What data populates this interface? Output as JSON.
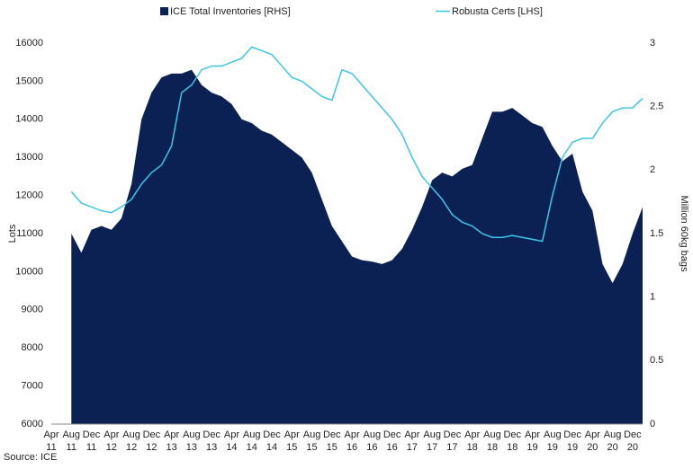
{
  "chart_data": {
    "type": "area-line",
    "source": "Source: ICE",
    "ylabel": "Lots",
    "y2label": "Million 60kg bags",
    "legend": "top",
    "categories": [
      "Apr 11",
      null,
      "Aug 11",
      null,
      "Dec 11",
      null,
      "Apr 12",
      null,
      "Aug 12",
      null,
      "Dec 12",
      null,
      "Apr 13",
      null,
      "Aug 13",
      null,
      "Dec 13",
      null,
      "Apr 14",
      null,
      "Aug 14",
      null,
      "Dec 14",
      null,
      "Apr 15",
      null,
      "Aug 15",
      null,
      "Dec 15",
      null,
      "Apr 16",
      null,
      "Aug 16",
      null,
      "Dec 16",
      null,
      "Apr 17",
      null,
      "Aug 17",
      null,
      "Dec 17",
      null,
      "Apr 18",
      null,
      "Aug 18",
      null,
      "Dec 18",
      null,
      "Apr 19",
      null,
      "Aug 19",
      null,
      "Dec 19",
      null,
      "Apr 20",
      null,
      "Aug 20",
      null,
      "Dec 20",
      null
    ],
    "series": [
      {
        "name": "ICE Total Inventories [RHS]",
        "color": "#0c2153",
        "axis": "y2",
        "kind": "area",
        "values": [
          null,
          null,
          1.5,
          1.35,
          1.53,
          1.56,
          1.53,
          1.62,
          1.89,
          2.4,
          2.61,
          2.73,
          2.76,
          2.76,
          2.79,
          2.67,
          2.61,
          2.58,
          2.52,
          2.4,
          2.37,
          2.31,
          2.28,
          2.22,
          2.16,
          2.1,
          1.98,
          1.77,
          1.56,
          1.44,
          1.32,
          1.29,
          1.28,
          1.26,
          1.29,
          1.38,
          1.53,
          1.71,
          1.92,
          1.98,
          1.95,
          2.01,
          2.04,
          2.25,
          2.46,
          2.46,
          2.49,
          2.43,
          2.37,
          2.34,
          2.19,
          2.07,
          2.13,
          1.83,
          1.68,
          1.26,
          1.11,
          1.26,
          1.5,
          1.71
        ]
      },
      {
        "name": "Robusta Certs [LHS]",
        "color": "#3cc6e8",
        "axis": "y",
        "kind": "line",
        "values": [
          null,
          null,
          12100,
          11800,
          11700,
          11600,
          11550,
          11700,
          11900,
          12300,
          12600,
          12800,
          13300,
          14700,
          14900,
          15300,
          15400,
          15400,
          15500,
          15600,
          15900,
          15800,
          15700,
          15400,
          15100,
          15000,
          14800,
          14600,
          14500,
          15300,
          15200,
          14900,
          14600,
          14300,
          14000,
          13600,
          13000,
          12500,
          12200,
          11900,
          11500,
          11300,
          11200,
          11000,
          10900,
          10900,
          10950,
          10900,
          10850,
          10800,
          12000,
          13000,
          13400,
          13500,
          13500,
          13900,
          14200,
          14300,
          14300,
          14550
        ]
      }
    ],
    "ylim": [
      6000,
      16000
    ],
    "yticks": [
      6000,
      7000,
      8000,
      9000,
      10000,
      11000,
      12000,
      13000,
      14000,
      15000,
      16000
    ],
    "y2lim": [
      0,
      3
    ],
    "y2ticks": [
      0,
      0.5,
      1,
      1.5,
      2,
      2.5,
      3
    ]
  }
}
